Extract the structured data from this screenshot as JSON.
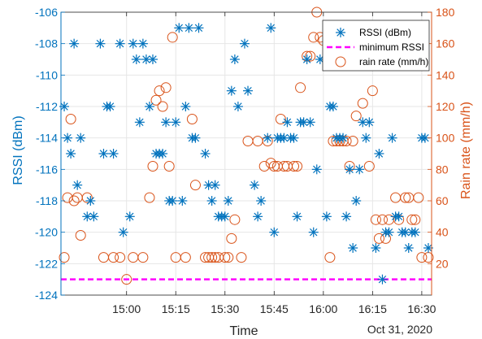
{
  "chart_data": {
    "type": "scatter",
    "title": "",
    "xlabel": "Time",
    "date_label": "Oct 31, 2020",
    "ylabel_left": "RSSI (dBm)",
    "ylabel_right": "Rain rate (mm/h)",
    "xlim": [
      "14:40",
      "16:33"
    ],
    "ylim_left": [
      -124,
      -106
    ],
    "ylim_right": [
      0,
      180
    ],
    "x_ticks": [
      "15:00",
      "15:15",
      "15:30",
      "15:45",
      "16:00",
      "16:15",
      "16:30"
    ],
    "y_ticks_left": [
      -106,
      -108,
      -110,
      -112,
      -114,
      -116,
      -118,
      -120,
      -122,
      -124
    ],
    "y_ticks_right": [
      20,
      40,
      60,
      80,
      100,
      120,
      140,
      160,
      180
    ],
    "grid": true,
    "legend_position": "top-right",
    "colors": {
      "rssi": "#0072BD",
      "min_rssi": "#FF00FF",
      "rain": "#D95319",
      "axis_left": "#0072BD",
      "axis_right": "#D95319",
      "grid": "#E6E6E6"
    },
    "series": [
      {
        "name": "RSSI (dBm)",
        "axis": "left",
        "marker": "asterisk",
        "points": [
          [
            "14:41",
            -112
          ],
          [
            "14:42",
            -114
          ],
          [
            "14:43",
            -115
          ],
          [
            "14:44",
            -108
          ],
          [
            "14:45",
            -117
          ],
          [
            "14:46",
            -114
          ],
          [
            "14:48",
            -119
          ],
          [
            "14:49",
            -118
          ],
          [
            "14:50",
            -119
          ],
          [
            "14:52",
            -108
          ],
          [
            "14:53",
            -115
          ],
          [
            "14:54",
            -112
          ],
          [
            "14:55",
            -112
          ],
          [
            "14:56",
            -115
          ],
          [
            "14:58",
            -108
          ],
          [
            "14:59",
            -120
          ],
          [
            "15:01",
            -119
          ],
          [
            "15:02",
            -108
          ],
          [
            "15:03",
            -109
          ],
          [
            "15:04",
            -113
          ],
          [
            "15:05",
            -108
          ],
          [
            "15:06",
            -109
          ],
          [
            "15:07",
            -112
          ],
          [
            "15:08",
            -109
          ],
          [
            "15:09",
            -115
          ],
          [
            "15:10",
            -115
          ],
          [
            "15:11",
            -115
          ],
          [
            "15:12",
            -113
          ],
          [
            "15:13",
            -118
          ],
          [
            "15:14",
            -118
          ],
          [
            "15:15",
            -113
          ],
          [
            "15:16",
            -107
          ],
          [
            "15:17",
            -118
          ],
          [
            "15:18",
            -112
          ],
          [
            "15:19",
            -107
          ],
          [
            "15:20",
            -114
          ],
          [
            "15:21",
            -114
          ],
          [
            "15:22",
            -107
          ],
          [
            "15:24",
            -115
          ],
          [
            "15:25",
            -117
          ],
          [
            "15:26",
            -118
          ],
          [
            "15:27",
            -117
          ],
          [
            "15:28",
            -119
          ],
          [
            "15:29",
            -119
          ],
          [
            "15:30",
            -119
          ],
          [
            "15:31",
            -118
          ],
          [
            "15:32",
            -111
          ],
          [
            "15:33",
            -109
          ],
          [
            "15:34",
            -112
          ],
          [
            "15:36",
            -108
          ],
          [
            "15:37",
            -111
          ],
          [
            "15:39",
            -117
          ],
          [
            "15:40",
            -119
          ],
          [
            "15:41",
            -118
          ],
          [
            "15:43",
            -114
          ],
          [
            "15:44",
            -107
          ],
          [
            "15:45",
            -120
          ],
          [
            "15:46",
            -114
          ],
          [
            "15:47",
            -114
          ],
          [
            "15:48",
            -114
          ],
          [
            "15:49",
            -113
          ],
          [
            "15:50",
            -114
          ],
          [
            "15:51",
            -114
          ],
          [
            "15:52",
            -119
          ],
          [
            "15:53",
            -113
          ],
          [
            "15:54",
            -113
          ],
          [
            "15:55",
            -109
          ],
          [
            "15:56",
            -113
          ],
          [
            "15:57",
            -120
          ],
          [
            "15:58",
            -116
          ],
          [
            "15:59",
            -109
          ],
          [
            "16:01",
            -119
          ],
          [
            "16:02",
            -112
          ],
          [
            "16:03",
            -112
          ],
          [
            "16:04",
            -114
          ],
          [
            "16:05",
            -114
          ],
          [
            "16:06",
            -114
          ],
          [
            "16:07",
            -119
          ],
          [
            "16:08",
            -116
          ],
          [
            "16:09",
            -121
          ],
          [
            "16:10",
            -118
          ],
          [
            "16:11",
            -116
          ],
          [
            "16:12",
            -113
          ],
          [
            "16:13",
            -114
          ],
          [
            "16:14",
            -113
          ],
          [
            "16:16",
            -121
          ],
          [
            "16:17",
            -115
          ],
          [
            "16:18",
            -123
          ],
          [
            "16:19",
            -120
          ],
          [
            "16:20",
            -120
          ],
          [
            "16:21",
            -114
          ],
          [
            "16:22",
            -119
          ],
          [
            "16:23",
            -119
          ],
          [
            "16:24",
            -120
          ],
          [
            "16:25",
            -120
          ],
          [
            "16:26",
            -121
          ],
          [
            "16:27",
            -120
          ],
          [
            "16:28",
            -120
          ],
          [
            "16:30",
            -114
          ],
          [
            "16:31",
            -114
          ],
          [
            "16:32",
            -121
          ]
        ]
      },
      {
        "name": "minimum RSSI",
        "axis": "left",
        "line": "dashed",
        "points": [
          [
            "14:40",
            -123
          ],
          [
            "16:33",
            -123
          ]
        ]
      },
      {
        "name": "rain rate (mm/h)",
        "axis": "right",
        "marker": "circle",
        "points": [
          [
            "14:41",
            24
          ],
          [
            "14:42",
            62
          ],
          [
            "14:43",
            112
          ],
          [
            "14:44",
            60
          ],
          [
            "14:45",
            62
          ],
          [
            "14:46",
            38
          ],
          [
            "14:48",
            62
          ],
          [
            "14:53",
            24
          ],
          [
            "14:56",
            24
          ],
          [
            "14:58",
            24
          ],
          [
            "15:00",
            10
          ],
          [
            "15:02",
            24
          ],
          [
            "15:05",
            24
          ],
          [
            "15:07",
            62
          ],
          [
            "15:08",
            82
          ],
          [
            "15:09",
            124
          ],
          [
            "15:10",
            130
          ],
          [
            "15:11",
            120
          ],
          [
            "15:12",
            132
          ],
          [
            "15:13",
            82
          ],
          [
            "15:14",
            164
          ],
          [
            "15:15",
            24
          ],
          [
            "15:18",
            24
          ],
          [
            "15:20",
            112
          ],
          [
            "15:21",
            70
          ],
          [
            "15:24",
            24
          ],
          [
            "15:25",
            24
          ],
          [
            "15:26",
            24
          ],
          [
            "15:27",
            24
          ],
          [
            "15:28",
            24
          ],
          [
            "15:30",
            24
          ],
          [
            "15:31",
            24
          ],
          [
            "15:32",
            36
          ],
          [
            "15:33",
            48
          ],
          [
            "15:35",
            24
          ],
          [
            "15:37",
            98
          ],
          [
            "15:40",
            98
          ],
          [
            "15:42",
            82
          ],
          [
            "15:43",
            98
          ],
          [
            "15:44",
            84
          ],
          [
            "15:45",
            82
          ],
          [
            "15:46",
            82
          ],
          [
            "15:47",
            112
          ],
          [
            "15:48",
            82
          ],
          [
            "15:49",
            82
          ],
          [
            "15:51",
            82
          ],
          [
            "15:52",
            82
          ],
          [
            "15:53",
            132
          ],
          [
            "15:55",
            152
          ],
          [
            "15:56",
            152
          ],
          [
            "15:57",
            164
          ],
          [
            "15:58",
            180
          ],
          [
            "15:59",
            164
          ],
          [
            "16:00",
            162
          ],
          [
            "16:02",
            24
          ],
          [
            "16:03",
            98
          ],
          [
            "16:04",
            98
          ],
          [
            "16:05",
            98
          ],
          [
            "16:06",
            98
          ],
          [
            "16:07",
            98
          ],
          [
            "16:08",
            82
          ],
          [
            "16:09",
            98
          ],
          [
            "16:10",
            114
          ],
          [
            "16:12",
            122
          ],
          [
            "16:14",
            82
          ],
          [
            "16:15",
            130
          ],
          [
            "16:16",
            48
          ],
          [
            "16:17",
            36
          ],
          [
            "16:18",
            48
          ],
          [
            "16:19",
            36
          ],
          [
            "16:20",
            48
          ],
          [
            "16:22",
            62
          ],
          [
            "16:23",
            48
          ],
          [
            "16:25",
            62
          ],
          [
            "16:26",
            62
          ],
          [
            "16:27",
            48
          ],
          [
            "16:28",
            48
          ],
          [
            "16:29",
            62
          ],
          [
            "16:30",
            24
          ],
          [
            "16:32",
            24
          ]
        ]
      }
    ]
  }
}
